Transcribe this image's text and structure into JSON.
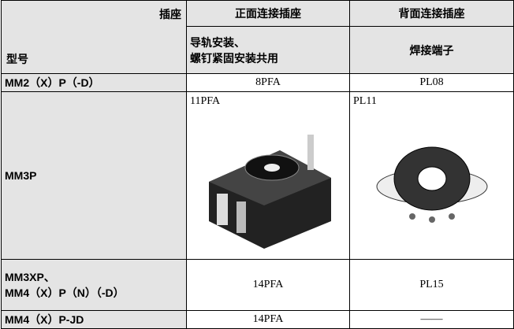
{
  "header": {
    "corner_top": "插座",
    "corner_bottom": "型号",
    "columns": [
      "正面连接插座",
      "背面连接插座"
    ],
    "subcolumns": [
      [
        "导轨安装、",
        "螺钉紧固安装共用"
      ],
      "焊接端子"
    ]
  },
  "table": {
    "rows": [
      [
        "MM2（X）P（-D）",
        "8PFA",
        "PL08"
      ],
      [
        "MM3P",
        "11PFA",
        "PL11"
      ],
      [
        [
          "MM3XP、",
          "MM4（X）P（N）（-D）"
        ],
        "14PFA",
        "PL15"
      ],
      [
        "MM4（X）P-JD",
        "14PFA",
        "——"
      ]
    ]
  }
}
